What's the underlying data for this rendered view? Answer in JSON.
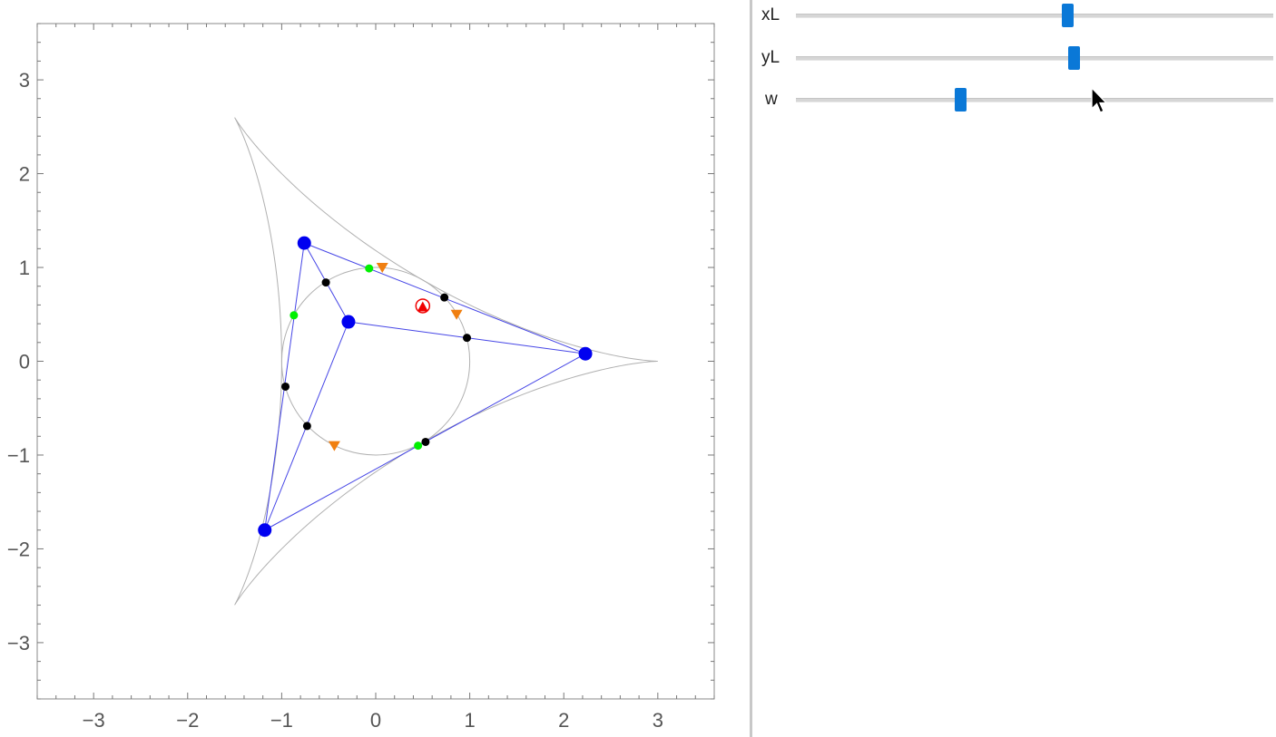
{
  "chart_data": {
    "type": "scatter",
    "xlim": [
      -3.6,
      3.6
    ],
    "ylim": [
      -3.6,
      3.6
    ],
    "x_ticks": [
      -3,
      -2,
      -1,
      0,
      1,
      2,
      3
    ],
    "y_ticks": [
      -3,
      -2,
      -1,
      0,
      1,
      2,
      3
    ],
    "x_tick_labels": [
      "−3",
      "−2",
      "−1",
      "0",
      "1",
      "2",
      "3"
    ],
    "y_tick_labels": [
      "−3",
      "−2",
      "−1",
      "0",
      "1",
      "2",
      "3"
    ],
    "grid": false,
    "deltoid": {
      "radius": 1,
      "color": "#b0b0b0"
    },
    "circle": {
      "center": [
        0,
        0
      ],
      "radius": 1,
      "color": "#b0b0b0"
    },
    "triangle_vertices": [
      [
        -0.76,
        1.26
      ],
      [
        2.23,
        0.08
      ],
      [
        -1.18,
        -1.8
      ]
    ],
    "inner_point": [
      -0.29,
      0.42
    ],
    "line_color": "#4646e6",
    "blue_points": [
      [
        -0.76,
        1.26
      ],
      [
        2.23,
        0.08
      ],
      [
        -1.18,
        -1.8
      ],
      [
        -0.29,
        0.42
      ]
    ],
    "black_points": [
      [
        -0.53,
        0.84
      ],
      [
        0.73,
        0.68
      ],
      [
        0.97,
        0.25
      ],
      [
        -0.96,
        -0.27
      ],
      [
        -0.73,
        -0.69
      ],
      [
        0.53,
        -0.86
      ]
    ],
    "green_points": [
      [
        -0.07,
        0.99
      ],
      [
        -0.87,
        0.49
      ],
      [
        0.45,
        -0.9
      ]
    ],
    "orange_triangles": [
      [
        0.07,
        1.0
      ],
      [
        0.86,
        0.5
      ],
      [
        -0.44,
        -0.9
      ]
    ],
    "red_circle": [
      0.5,
      0.59
    ],
    "red_triangle": [
      0.5,
      0.57
    ],
    "colors": {
      "blue": "#0000f0",
      "black": "#000000",
      "green": "#00f000",
      "orange": "#f07f10",
      "red": "#f00000"
    }
  },
  "sliders": [
    {
      "label": "xL",
      "value": 0.569
    },
    {
      "label": "yL",
      "value": 0.582
    },
    {
      "label": "w",
      "value": 0.345
    }
  ]
}
